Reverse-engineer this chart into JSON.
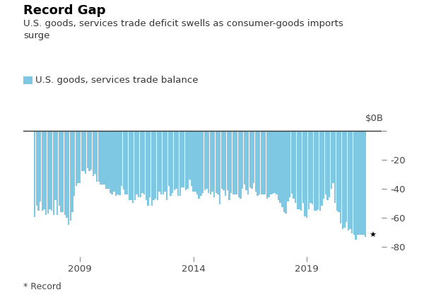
{
  "title": "Record Gap",
  "subtitle": "U.S. goods, services trade deficit swells as consumer-goods imports\nsurge",
  "legend_label": "U.S. goods, services trade balance",
  "bar_color": "#7EC8E3",
  "background_color": "#ffffff",
  "ylabel_top": "$0B",
  "yticks": [
    0,
    -20,
    -40,
    -60,
    -80
  ],
  "ytick_labels": [
    "",
    "-20",
    "-40",
    "-60",
    "-80"
  ],
  "xlim_start": 2006.5,
  "xlim_end": 2022.3,
  "ylim_min": -87,
  "ylim_max": 4,
  "footnote": "* Record",
  "xtick_years": [
    2009,
    2014,
    2019
  ],
  "record_symbol": "★",
  "raw_values": [
    -59.5,
    -52.0,
    -55.0,
    -49.0,
    -55.0,
    -54.0,
    -58.0,
    -57.0,
    -54.0,
    -55.0,
    -58.0,
    -48.0,
    -58.0,
    -52.0,
    -56.0,
    -56.0,
    -58.0,
    -60.0,
    -65.0,
    -62.0,
    -56.0,
    -45.0,
    -38.0,
    -36.0,
    -36.0,
    -28.0,
    -28.0,
    -30.0,
    -26.0,
    -28.0,
    -27.0,
    -31.5,
    -30.0,
    -35.0,
    -35.0,
    -37.0,
    -37.0,
    -37.0,
    -40.0,
    -40.0,
    -43.0,
    -44.0,
    -42.0,
    -45.0,
    -44.0,
    -44.5,
    -38.0,
    -40.5,
    -44.0,
    -44.0,
    -48.0,
    -48.0,
    -50.0,
    -48.0,
    -44.0,
    -46.0,
    -46.0,
    -43.0,
    -44.0,
    -48.0,
    -52.0,
    -46.0,
    -52.0,
    -48.0,
    -47.0,
    -48.0,
    -42.0,
    -44.0,
    -44.0,
    -42.0,
    -48.0,
    -38.0,
    -45.0,
    -43.0,
    -41.0,
    -40.0,
    -45.0,
    -45.0,
    -39.0,
    -39.0,
    -41.0,
    -40.0,
    -34.0,
    -38.0,
    -42.0,
    -42.0,
    -44.0,
    -47.0,
    -45.0,
    -43.0,
    -41.0,
    -40.0,
    -43.0,
    -44.0,
    -42.0,
    -46.0,
    -43.0,
    -44.0,
    -51.0,
    -40.0,
    -41.0,
    -45.0,
    -41.0,
    -48.0,
    -43.0,
    -44.0,
    -44.0,
    -44.0,
    -46.0,
    -47.0,
    -40.0,
    -37.0,
    -41.0,
    -44.0,
    -39.0,
    -40.0,
    -36.0,
    -42.0,
    -45.0,
    -44.0,
    -44.0,
    -44.0,
    -44.0,
    -47.0,
    -46.0,
    -44.0,
    -43.5,
    -43.0,
    -44.0,
    -48.0,
    -50.0,
    -53.0,
    -56.0,
    -57.0,
    -49.0,
    -46.0,
    -43.5,
    -47.0,
    -50.0,
    -54.0,
    -54.0,
    -55.0,
    -50.0,
    -59.0,
    -60.0,
    -54.0,
    -50.0,
    -51.0,
    -55.0,
    -55.0,
    -54.0,
    -55.0,
    -52.0,
    -47.0,
    -44.0,
    -48.0,
    -46.0,
    -40.0,
    -36.0,
    -50.0,
    -55.0,
    -56.0,
    -64.0,
    -68.0,
    -67.0,
    -63.0,
    -69.0,
    -68.0,
    -71.0,
    -72.0,
    -75.0,
    -72.0,
    -72.0,
    -72.0,
    -72.0,
    -73.3
  ],
  "start_year": 2007,
  "title_fontsize": 13,
  "subtitle_fontsize": 9.5,
  "legend_fontsize": 9.5,
  "tick_fontsize": 9.5,
  "footnote_fontsize": 9
}
